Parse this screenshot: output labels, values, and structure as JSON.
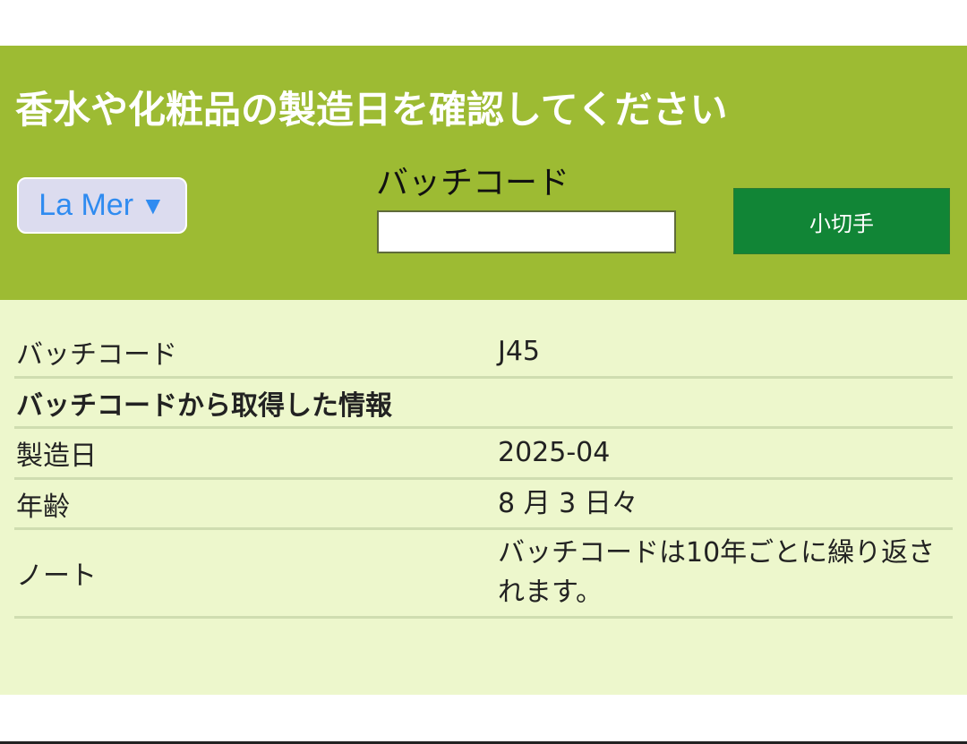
{
  "header": {
    "title": "香水や化粧品の製造日を確認してください",
    "brand_select": {
      "value": "La Mer",
      "arrow": "▼"
    },
    "batch_label": "バッチコード",
    "batch_input": {
      "value": "",
      "placeholder": ""
    },
    "check_button": "小切手"
  },
  "results": {
    "rows": [
      {
        "label": "バッチコード",
        "value": "J45"
      },
      {
        "label": "バッチコードから取得した情報",
        "value": ""
      },
      {
        "label": "製造日",
        "value": "2025-04"
      },
      {
        "label": "年齢",
        "value": "8 月 3 日々"
      },
      {
        "label": "ノート",
        "value": "バッチコードは10年ごとに繰り返されます。"
      }
    ]
  },
  "colors": {
    "header_bg": "#9dbb33",
    "content_bg": "#edf7cc",
    "button_bg": "#118536",
    "brand_text": "#2f8bf0"
  }
}
